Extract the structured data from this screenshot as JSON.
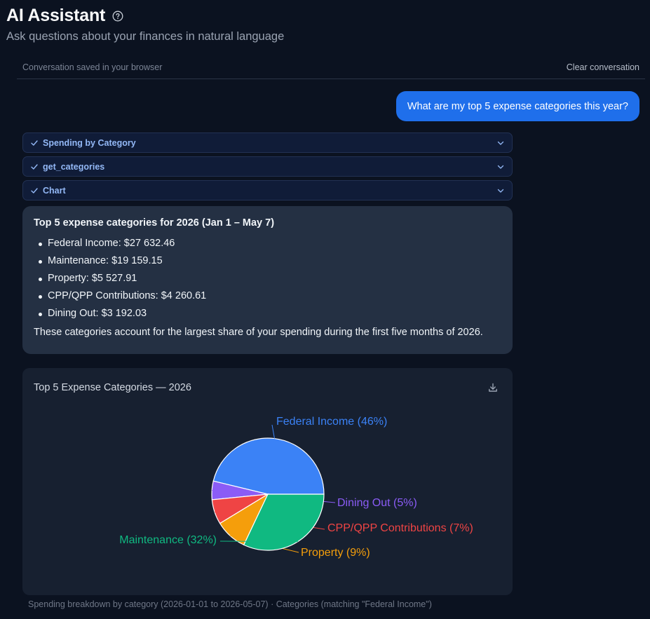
{
  "header": {
    "title": "AI Assistant",
    "subtitle": "Ask questions about your finances in natural language"
  },
  "conversation": {
    "saved_note": "Conversation saved in your browser",
    "clear_label": "Clear conversation"
  },
  "user_message": "What are my top 5 expense categories this year?",
  "tool_calls": [
    {
      "label": "Spending by Category",
      "status": "done"
    },
    {
      "label": "get_categories",
      "status": "done"
    },
    {
      "label": "Chart",
      "status": "done"
    }
  ],
  "answer": {
    "title": "Top 5 expense categories for 2026 (Jan 1 – May 7)",
    "items": [
      "Federal Income: $27 632.46",
      "Maintenance: $19 159.15",
      "Property: $5 527.91",
      "CPP/QPP Contributions: $4 260.61",
      "Dining Out: $3 192.03"
    ],
    "summary": "These categories account for the largest share of your spending during the first five months of 2026."
  },
  "chart_card": {
    "title": "Top 5 Expense Categories — 2026"
  },
  "chart_data": {
    "type": "pie",
    "title": "Top 5 Expense Categories — 2026",
    "slices": [
      {
        "name": "Federal Income",
        "value": 27632.46,
        "label": "Federal Income (46%)",
        "color": "#3b82f6"
      },
      {
        "name": "Dining Out",
        "value": 3192.03,
        "label": "Dining Out (5%)",
        "color": "#8b5cf6"
      },
      {
        "name": "CPP/QPP Contributions",
        "value": 4260.61,
        "label": "CPP/QPP Contributions (7%)",
        "color": "#ef4444"
      },
      {
        "name": "Property",
        "value": 5527.91,
        "label": "Property (9%)",
        "color": "#f59e0b"
      },
      {
        "name": "Maintenance",
        "value": 19159.15,
        "label": "Maintenance (32%)",
        "color": "#10b981"
      }
    ]
  },
  "footnote": "Spending breakdown by category (2026-01-01 to 2026-05-07) · Categories (matching \"Federal Income\")",
  "colors": {
    "accent": "#1f6feb",
    "tool_text": "#93b8f6"
  }
}
